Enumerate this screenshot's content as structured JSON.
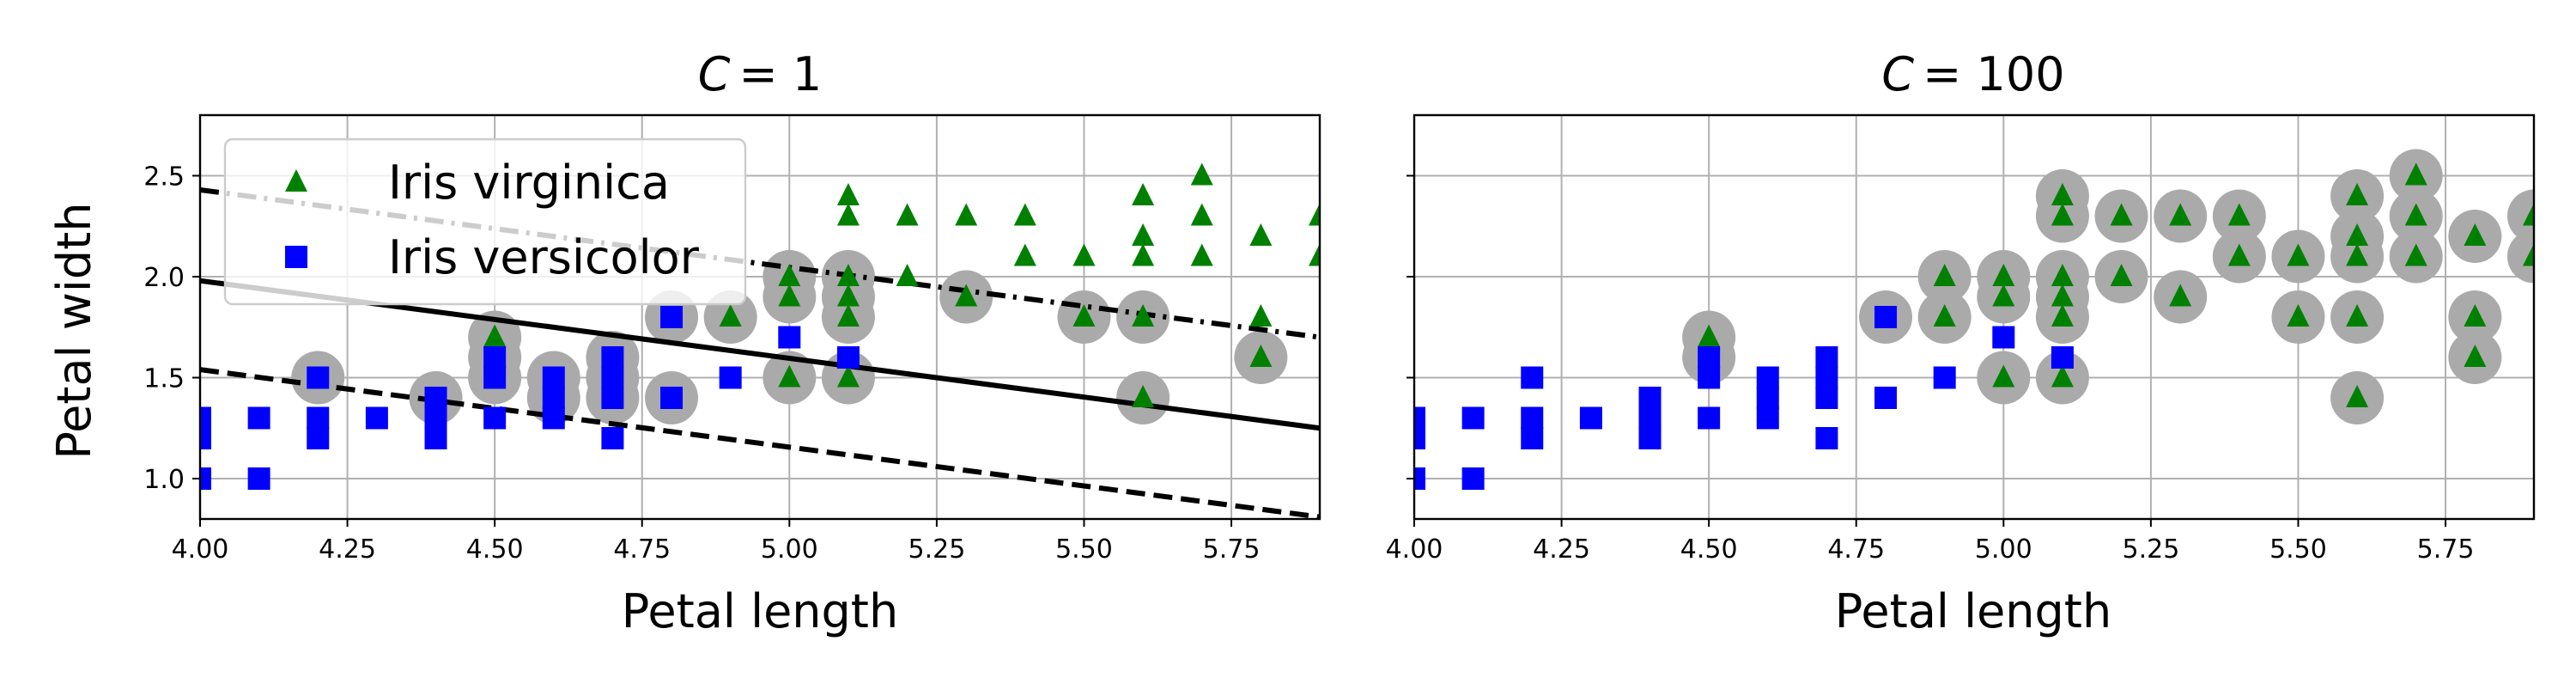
{
  "chart_data": [
    {
      "type": "scatter",
      "title_symbol": "C",
      "title_value": "= 1",
      "xlabel": "Petal length",
      "ylabel": "Petal width",
      "xlim": [
        4.0,
        5.9
      ],
      "ylim": [
        0.8,
        2.8
      ],
      "x_ticks": [
        "4.00",
        "4.25",
        "4.50",
        "4.75",
        "5.00",
        "5.25",
        "5.50",
        "5.75"
      ],
      "y_ticks": [
        "1.0",
        "1.5",
        "2.0",
        "2.5"
      ],
      "grid": true,
      "legend": {
        "placement": "upper-left",
        "entries": [
          {
            "label": "Iris virginica",
            "marker": "triangle",
            "color": "#008000"
          },
          {
            "label": "Iris versicolor",
            "marker": "square",
            "color": "#0000ff"
          }
        ]
      },
      "support_vector_color": "#aaaaaa",
      "decision_boundary": {
        "solid": [
          [
            4.0,
            1.98
          ],
          [
            5.9,
            1.25
          ]
        ],
        "margin_upper": [
          [
            4.0,
            2.43
          ],
          [
            5.9,
            1.7
          ]
        ],
        "margin_lower": [
          [
            4.0,
            1.54
          ],
          [
            5.9,
            0.81
          ]
        ]
      },
      "series": [
        {
          "name": "Iris virginica",
          "marker": "triangle",
          "color": "#008000",
          "points": [
            [
              4.5,
              1.7
            ],
            [
              4.9,
              1.8
            ],
            [
              5.0,
              2.0
            ],
            [
              5.0,
              1.9
            ],
            [
              5.0,
              1.5
            ],
            [
              5.1,
              2.4
            ],
            [
              5.1,
              2.3
            ],
            [
              5.1,
              2.0
            ],
            [
              5.1,
              1.9
            ],
            [
              5.1,
              1.8
            ],
            [
              5.1,
              1.5
            ],
            [
              5.2,
              2.3
            ],
            [
              5.2,
              2.0
            ],
            [
              5.3,
              2.3
            ],
            [
              5.3,
              1.9
            ],
            [
              5.4,
              2.3
            ],
            [
              5.4,
              2.1
            ],
            [
              5.5,
              2.1
            ],
            [
              5.5,
              1.8
            ],
            [
              5.6,
              2.4
            ],
            [
              5.6,
              2.2
            ],
            [
              5.6,
              2.1
            ],
            [
              5.6,
              1.8
            ],
            [
              5.6,
              1.4
            ],
            [
              5.7,
              2.5
            ],
            [
              5.7,
              2.3
            ],
            [
              5.7,
              2.1
            ],
            [
              5.8,
              2.2
            ],
            [
              5.8,
              1.8
            ],
            [
              5.8,
              1.6
            ],
            [
              5.9,
              2.3
            ],
            [
              5.9,
              2.1
            ]
          ]
        },
        {
          "name": "Iris versicolor",
          "marker": "square",
          "color": "#0000ff",
          "points": [
            [
              4.0,
              1.3
            ],
            [
              4.0,
              1.2
            ],
            [
              4.0,
              1.0
            ],
            [
              4.1,
              1.3
            ],
            [
              4.1,
              1.0
            ],
            [
              4.2,
              1.5
            ],
            [
              4.2,
              1.3
            ],
            [
              4.2,
              1.2
            ],
            [
              4.3,
              1.3
            ],
            [
              4.4,
              1.4
            ],
            [
              4.4,
              1.3
            ],
            [
              4.4,
              1.2
            ],
            [
              4.5,
              1.6
            ],
            [
              4.5,
              1.5
            ],
            [
              4.5,
              1.3
            ],
            [
              4.6,
              1.5
            ],
            [
              4.6,
              1.4
            ],
            [
              4.6,
              1.3
            ],
            [
              4.7,
              1.6
            ],
            [
              4.7,
              1.5
            ],
            [
              4.7,
              1.4
            ],
            [
              4.7,
              1.2
            ],
            [
              4.8,
              1.8
            ],
            [
              4.8,
              1.4
            ],
            [
              4.9,
              1.5
            ],
            [
              5.0,
              1.7
            ],
            [
              5.1,
              1.6
            ]
          ]
        }
      ],
      "support_vectors": [
        [
          4.2,
          1.5
        ],
        [
          4.4,
          1.4
        ],
        [
          4.5,
          1.7
        ],
        [
          4.5,
          1.6
        ],
        [
          4.5,
          1.5
        ],
        [
          4.6,
          1.5
        ],
        [
          4.6,
          1.4
        ],
        [
          4.7,
          1.6
        ],
        [
          4.7,
          1.5
        ],
        [
          4.7,
          1.4
        ],
        [
          4.8,
          1.8
        ],
        [
          4.8,
          1.4
        ],
        [
          4.9,
          1.8
        ],
        [
          5.0,
          2.0
        ],
        [
          5.0,
          1.9
        ],
        [
          5.0,
          1.5
        ],
        [
          5.1,
          2.0
        ],
        [
          5.1,
          1.9
        ],
        [
          5.1,
          1.8
        ],
        [
          5.1,
          1.5
        ],
        [
          5.3,
          1.9
        ],
        [
          5.5,
          1.8
        ],
        [
          5.6,
          1.8
        ],
        [
          5.6,
          1.4
        ],
        [
          5.8,
          1.6
        ]
      ]
    },
    {
      "type": "scatter",
      "title_symbol": "C",
      "title_value": "= 100",
      "xlabel": "Petal length",
      "ylabel": "",
      "xlim": [
        4.0,
        5.9
      ],
      "ylim": [
        0.8,
        2.8
      ],
      "x_ticks": [
        "4.00",
        "4.25",
        "4.50",
        "4.75",
        "5.00",
        "5.25",
        "5.50",
        "5.75"
      ],
      "y_ticks": [],
      "grid": true,
      "support_vector_color": "#aaaaaa",
      "series": [
        {
          "name": "Iris virginica",
          "marker": "triangle",
          "color": "#008000",
          "points": [
            [
              4.5,
              1.7
            ],
            [
              4.9,
              1.8
            ],
            [
              4.9,
              2.0
            ],
            [
              5.0,
              2.0
            ],
            [
              5.0,
              1.9
            ],
            [
              5.0,
              1.5
            ],
            [
              5.1,
              2.4
            ],
            [
              5.1,
              2.3
            ],
            [
              5.1,
              2.0
            ],
            [
              5.1,
              1.9
            ],
            [
              5.1,
              1.8
            ],
            [
              5.1,
              1.5
            ],
            [
              5.2,
              2.3
            ],
            [
              5.2,
              2.0
            ],
            [
              5.3,
              2.3
            ],
            [
              5.3,
              1.9
            ],
            [
              5.4,
              2.3
            ],
            [
              5.4,
              2.1
            ],
            [
              5.5,
              2.1
            ],
            [
              5.5,
              1.8
            ],
            [
              5.6,
              2.4
            ],
            [
              5.6,
              2.2
            ],
            [
              5.6,
              2.1
            ],
            [
              5.6,
              1.8
            ],
            [
              5.6,
              1.4
            ],
            [
              5.7,
              2.5
            ],
            [
              5.7,
              2.3
            ],
            [
              5.7,
              2.1
            ],
            [
              5.8,
              2.2
            ],
            [
              5.8,
              1.8
            ],
            [
              5.8,
              1.6
            ],
            [
              5.9,
              2.3
            ],
            [
              5.9,
              2.1
            ]
          ]
        },
        {
          "name": "Iris versicolor",
          "marker": "square",
          "color": "#0000ff",
          "points": [
            [
              4.0,
              1.3
            ],
            [
              4.0,
              1.2
            ],
            [
              4.0,
              1.0
            ],
            [
              4.1,
              1.3
            ],
            [
              4.1,
              1.0
            ],
            [
              4.2,
              1.5
            ],
            [
              4.2,
              1.3
            ],
            [
              4.2,
              1.2
            ],
            [
              4.3,
              1.3
            ],
            [
              4.4,
              1.4
            ],
            [
              4.4,
              1.3
            ],
            [
              4.4,
              1.2
            ],
            [
              4.5,
              1.6
            ],
            [
              4.5,
              1.5
            ],
            [
              4.5,
              1.3
            ],
            [
              4.6,
              1.5
            ],
            [
              4.6,
              1.4
            ],
            [
              4.6,
              1.3
            ],
            [
              4.7,
              1.6
            ],
            [
              4.7,
              1.5
            ],
            [
              4.7,
              1.4
            ],
            [
              4.7,
              1.2
            ],
            [
              4.8,
              1.8
            ],
            [
              4.8,
              1.4
            ],
            [
              4.9,
              1.5
            ],
            [
              5.0,
              1.7
            ],
            [
              5.1,
              1.6
            ]
          ]
        }
      ],
      "support_vectors": [
        [
          4.5,
          1.7
        ],
        [
          4.5,
          1.6
        ],
        [
          4.8,
          1.8
        ],
        [
          4.9,
          1.8
        ],
        [
          4.9,
          2.0
        ],
        [
          5.0,
          2.0
        ],
        [
          5.0,
          1.9
        ],
        [
          5.0,
          1.5
        ],
        [
          5.1,
          2.4
        ],
        [
          5.1,
          2.3
        ],
        [
          5.1,
          2.0
        ],
        [
          5.1,
          1.9
        ],
        [
          5.1,
          1.8
        ],
        [
          5.1,
          1.5
        ],
        [
          5.2,
          2.3
        ],
        [
          5.2,
          2.0
        ],
        [
          5.3,
          2.3
        ],
        [
          5.3,
          1.9
        ],
        [
          5.4,
          2.3
        ],
        [
          5.4,
          2.1
        ],
        [
          5.5,
          2.1
        ],
        [
          5.5,
          1.8
        ],
        [
          5.6,
          2.4
        ],
        [
          5.6,
          2.2
        ],
        [
          5.6,
          2.1
        ],
        [
          5.6,
          1.8
        ],
        [
          5.6,
          1.4
        ],
        [
          5.7,
          2.5
        ],
        [
          5.7,
          2.3
        ],
        [
          5.7,
          2.1
        ],
        [
          5.8,
          2.2
        ],
        [
          5.8,
          1.8
        ],
        [
          5.8,
          1.6
        ],
        [
          5.9,
          2.3
        ],
        [
          5.9,
          2.1
        ]
      ]
    }
  ]
}
